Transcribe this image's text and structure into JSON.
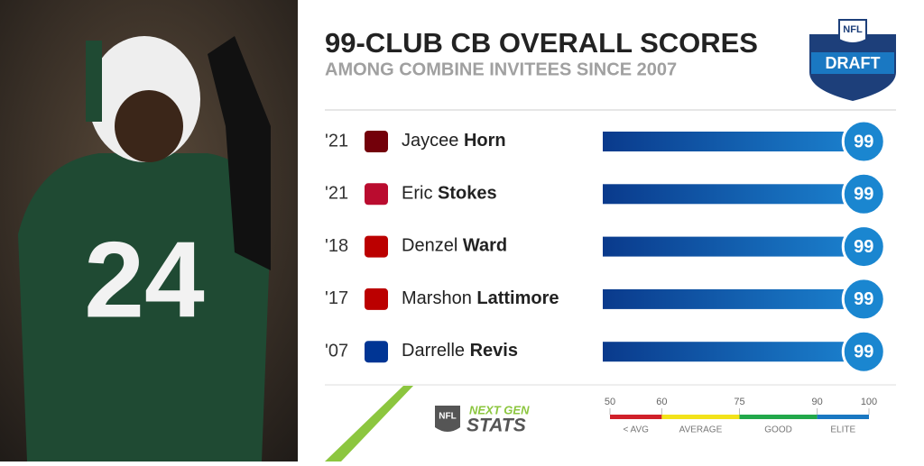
{
  "chart_data": {
    "type": "bar",
    "title": "99-CLUB CB OVERALL SCORES",
    "subtitle": "AMONG COMBINE INVITEES SINCE 2007",
    "years": [
      "'21",
      "'21",
      "'18",
      "'17",
      "'07"
    ],
    "first_names": [
      "Jaycee",
      "Eric",
      "Denzel",
      "Marshon",
      "Darrelle"
    ],
    "categories": [
      "Horn",
      "Stokes",
      "Ward",
      "Lattimore",
      "Revis"
    ],
    "values": [
      99,
      99,
      99,
      99,
      99
    ],
    "xlim": [
      50,
      100
    ],
    "xticks": [
      50,
      60,
      75,
      90,
      100
    ],
    "bands": [
      {
        "label": "< AVG",
        "from": 50,
        "to": 60,
        "color": "#d0202a"
      },
      {
        "label": "AVERAGE",
        "from": 60,
        "to": 75,
        "color": "#f2e21a"
      },
      {
        "label": "GOOD",
        "from": 75,
        "to": 90,
        "color": "#22a84a"
      },
      {
        "label": "ELITE",
        "from": 90,
        "to": 100,
        "color": "#1a78c2"
      }
    ],
    "badge": {
      "league": "NFL",
      "event": "DRAFT"
    },
    "footer_logo": {
      "league": "NFL",
      "line1": "NEXT GEN",
      "line2": "STATS"
    },
    "jersey_number": "24"
  }
}
